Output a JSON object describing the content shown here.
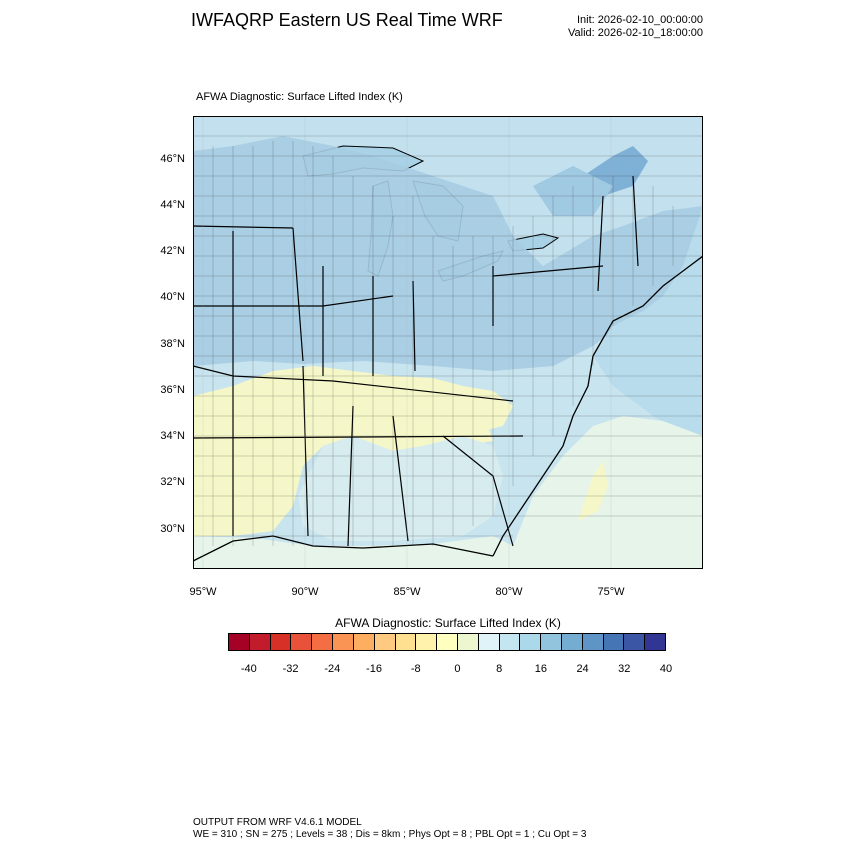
{
  "header": {
    "title": "IWFAQRP Eastern US Real Time WRF",
    "init": "Init: 2026-02-10_00:00:00",
    "valid": "Valid: 2026-02-10_18:00:00"
  },
  "map": {
    "field_label": "AFWA Diagnostic: Surface Lifted Index   (K)",
    "lat_labels": [
      "46°N",
      "44°N",
      "42°N",
      "40°N",
      "38°N",
      "36°N",
      "34°N",
      "32°N",
      "30°N"
    ],
    "lon_labels": [
      "95°W",
      "90°W",
      "85°W",
      "80°W",
      "75°W"
    ],
    "colors": {
      "water_lakes": "#a9d2e6",
      "ocean_north": "#b8dcec",
      "ocean_south": "#e6f4ea",
      "land_north": "#a6cce2",
      "land_mid": "#c8e4ef",
      "land_south_yellow": "#f5f7c8",
      "canada": "#c3e0ee",
      "dark_blue_patch": "#7fb0d6"
    }
  },
  "colorbar": {
    "title": "AFWA Diagnostic: Surface Lifted Index  (K)",
    "ticks": [
      "-40",
      "-32",
      "-24",
      "-16",
      "-8",
      "0",
      "8",
      "16",
      "24",
      "32",
      "40"
    ],
    "colors": [
      "#a50026",
      "#c21b2b",
      "#d73027",
      "#e8513a",
      "#f46d43",
      "#f99455",
      "#fdae61",
      "#fec980",
      "#fee090",
      "#fff2ac",
      "#ffffbf",
      "#ecf7d0",
      "#e0f3f8",
      "#c4e6f0",
      "#abd9e9",
      "#92c4de",
      "#74add1",
      "#5f94c6",
      "#4575b4",
      "#3b56a4",
      "#313695"
    ]
  },
  "footer": {
    "line1": "OUTPUT FROM WRF V4.6.1 MODEL",
    "line2": "WE = 310 ; SN = 275 ; Levels = 38 ; Dis = 8km ; Phys Opt = 8 ; PBL Opt = 1 ; Cu Opt = 3"
  }
}
